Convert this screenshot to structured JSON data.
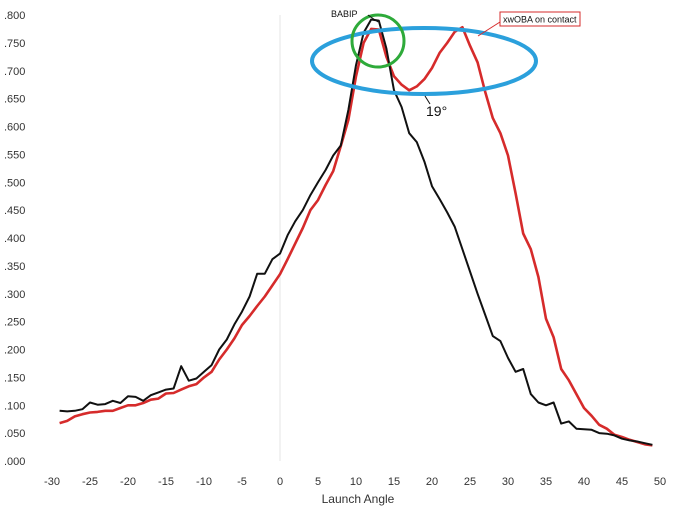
{
  "chart_data": {
    "type": "line",
    "title": "",
    "xlabel": "Launch Angle",
    "ylabel": "",
    "xlim": [
      -30,
      50
    ],
    "ylim": [
      0,
      0.8
    ],
    "xticks": [
      "-30",
      "-25",
      "-20",
      "-15",
      "-10",
      "-5",
      "0",
      "5",
      "10",
      "15",
      "20",
      "25",
      "30",
      "35",
      "40",
      "45",
      "50"
    ],
    "yticks": [
      ".000",
      ".050",
      ".100",
      ".150",
      ".200",
      ".250",
      ".300",
      ".350",
      ".400",
      ".450",
      ".500",
      ".550",
      ".600",
      ".650",
      ".700",
      ".750",
      ".800"
    ],
    "grid": "vertical line at 0",
    "series": [
      {
        "name": "BABIP",
        "color": "#111111",
        "x": [
          -29,
          -28,
          -27,
          -26,
          -25,
          -24,
          -23,
          -22,
          -21,
          -20,
          -19,
          -18,
          -17,
          -16,
          -15,
          -14,
          -13,
          -12,
          -11,
          -10,
          -9,
          -8,
          -7,
          -6,
          -5,
          -4,
          -3,
          -2,
          -1,
          0,
          1,
          2,
          3,
          4,
          5,
          6,
          7,
          8,
          9,
          10,
          11,
          12,
          13,
          14,
          15,
          16,
          17,
          18,
          19,
          20,
          21,
          22,
          23,
          24,
          25,
          26,
          27,
          28,
          29,
          30,
          31,
          32,
          33,
          34,
          35,
          36,
          37,
          38,
          39,
          40,
          41,
          42,
          43,
          44,
          45,
          46,
          47,
          48,
          49
        ],
        "values": [
          0.09,
          0.089,
          0.09,
          0.093,
          0.105,
          0.101,
          0.102,
          0.108,
          0.104,
          0.116,
          0.115,
          0.108,
          0.118,
          0.123,
          0.128,
          0.13,
          0.17,
          0.144,
          0.148,
          0.16,
          0.172,
          0.2,
          0.218,
          0.245,
          0.268,
          0.295,
          0.336,
          0.336,
          0.362,
          0.372,
          0.405,
          0.43,
          0.45,
          0.477,
          0.5,
          0.522,
          0.548,
          0.566,
          0.63,
          0.71,
          0.768,
          0.792,
          0.79,
          0.74,
          0.665,
          0.635,
          0.588,
          0.572,
          0.537,
          0.493,
          0.47,
          0.446,
          0.42,
          0.38,
          0.34,
          0.3,
          0.262,
          0.224,
          0.215,
          0.185,
          0.16,
          0.165,
          0.12,
          0.105,
          0.1,
          0.105,
          0.067,
          0.071,
          0.058,
          0.057,
          0.056,
          0.05,
          0.049,
          0.046,
          0.04,
          0.037,
          0.035,
          0.032,
          0.029
        ]
      },
      {
        "name": "xwOBA on contact",
        "color": "#d62b2b",
        "x": [
          -29,
          -28,
          -27,
          -26,
          -25,
          -24,
          -23,
          -22,
          -21,
          -20,
          -19,
          -18,
          -17,
          -16,
          -15,
          -14,
          -13,
          -12,
          -11,
          -10,
          -9,
          -8,
          -7,
          -6,
          -5,
          -4,
          -3,
          -2,
          -1,
          0,
          1,
          2,
          3,
          4,
          5,
          6,
          7,
          8,
          9,
          10,
          11,
          12,
          13,
          14,
          15,
          16,
          17,
          18,
          19,
          20,
          21,
          22,
          23,
          24,
          25,
          26,
          27,
          28,
          29,
          30,
          31,
          32,
          33,
          34,
          35,
          36,
          37,
          38,
          39,
          40,
          41,
          42,
          43,
          44,
          45,
          46,
          47,
          48,
          49
        ],
        "values": [
          0.068,
          0.072,
          0.08,
          0.084,
          0.087,
          0.088,
          0.09,
          0.09,
          0.095,
          0.1,
          0.1,
          0.104,
          0.11,
          0.112,
          0.121,
          0.122,
          0.128,
          0.134,
          0.138,
          0.15,
          0.16,
          0.182,
          0.2,
          0.22,
          0.244,
          0.26,
          0.278,
          0.295,
          0.315,
          0.335,
          0.362,
          0.39,
          0.418,
          0.45,
          0.468,
          0.495,
          0.52,
          0.565,
          0.612,
          0.69,
          0.75,
          0.775,
          0.774,
          0.725,
          0.69,
          0.675,
          0.665,
          0.672,
          0.685,
          0.705,
          0.732,
          0.75,
          0.77,
          0.778,
          0.745,
          0.715,
          0.662,
          0.615,
          0.588,
          0.548,
          0.48,
          0.408,
          0.38,
          0.33,
          0.255,
          0.222,
          0.165,
          0.145,
          0.12,
          0.095,
          0.081,
          0.065,
          0.058,
          0.047,
          0.043,
          0.038,
          0.034,
          0.03,
          0.028
        ]
      }
    ],
    "annotations": [
      {
        "text": "BABIP",
        "type": "label"
      },
      {
        "text": "xwOBA on contact",
        "type": "boxed-label"
      },
      {
        "text": "19°",
        "type": "label"
      }
    ],
    "highlight_colors": {
      "ellipse": "#2ba0dc",
      "circle": "#2eaa3a"
    }
  }
}
